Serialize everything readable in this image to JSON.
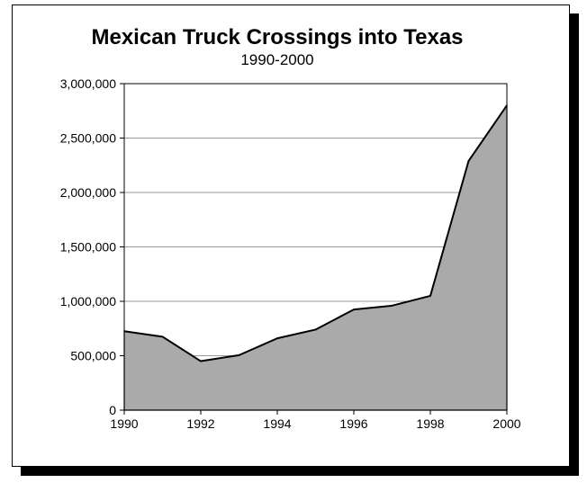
{
  "chart_data": {
    "type": "area",
    "title": "Mexican Truck Crossings into Texas",
    "subtitle": "1990-2000",
    "x": [
      1990,
      1991,
      1992,
      1993,
      1994,
      1995,
      1996,
      1997,
      1998,
      1999,
      2000
    ],
    "values": [
      725000,
      675000,
      450000,
      505000,
      660000,
      740000,
      925000,
      960000,
      1050000,
      2290000,
      2800000
    ],
    "xlim": [
      1990,
      2000
    ],
    "ylim": [
      0,
      3000000
    ],
    "x_ticks": [
      1990,
      1992,
      1994,
      1996,
      1998,
      2000
    ],
    "x_tick_labels": [
      "1990",
      "1992",
      "1994",
      "1996",
      "1998",
      "2000"
    ],
    "y_ticks": [
      0,
      500000,
      1000000,
      1500000,
      2000000,
      2500000,
      3000000
    ],
    "y_tick_labels": [
      "0",
      "500,000",
      "1,000,000",
      "1,500,000",
      "2,000,000",
      "2,500,000",
      "3,000,000"
    ],
    "xlabel": "",
    "ylabel": "",
    "grid": "horizontal",
    "legend": "none",
    "colors": {
      "fill": "#aaaaaa",
      "line": "#000000",
      "grid": "#999999"
    }
  }
}
